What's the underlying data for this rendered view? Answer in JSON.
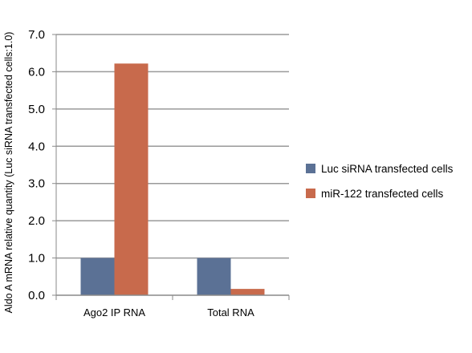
{
  "chart_data": {
    "type": "bar",
    "title": "",
    "xlabel": "",
    "ylabel": "Aldo A mRNA relative quantity (Luc siRNA transfected cells:1.0)",
    "categories": [
      "Ago2 IP RNA",
      "Total RNA"
    ],
    "series": [
      {
        "name": "Luc siRNA transfected cells",
        "values": [
          1.0,
          1.0
        ],
        "color": "#5b7195"
      },
      {
        "name": "miR-122 transfected cells",
        "values": [
          6.22,
          0.17
        ],
        "color": "#c86a4c"
      }
    ],
    "ylim": [
      0,
      7
    ],
    "yticks": [
      "0.0",
      "1.0",
      "2.0",
      "3.0",
      "4.0",
      "5.0",
      "6.0",
      "7.0"
    ],
    "grid": true,
    "gridline_color": "#9a9a9a",
    "legend_position": "right"
  }
}
